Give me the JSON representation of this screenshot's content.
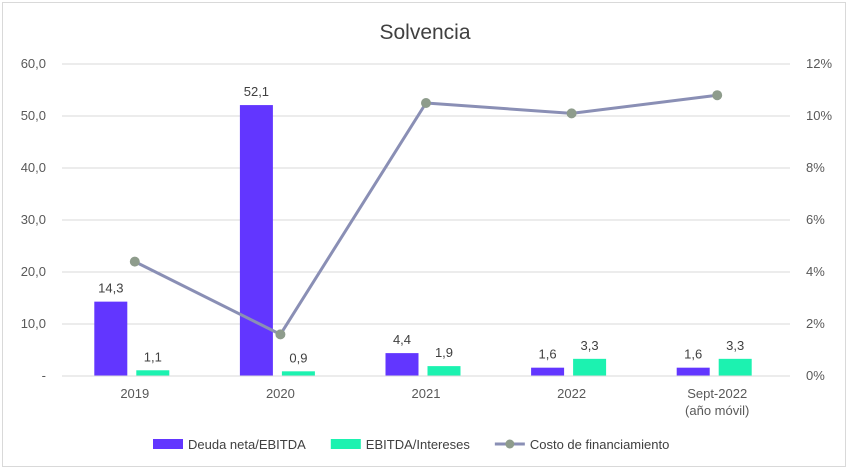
{
  "chart_data": {
    "type": "bar",
    "title": "Solvencia",
    "categories": [
      [
        "2019"
      ],
      [
        "2020"
      ],
      [
        "2021"
      ],
      [
        "2022"
      ],
      [
        "Sept-2022",
        "(año móvil)"
      ]
    ],
    "series": [
      {
        "name": "Deuda neta/EBITDA",
        "type": "bar",
        "axis": "left",
        "color": "#6236FF",
        "values": [
          14.3,
          52.1,
          4.4,
          1.6,
          1.6
        ],
        "labels": [
          "14,3",
          "52,1",
          "4,4",
          "1,6",
          "1,6"
        ]
      },
      {
        "name": "EBITDA/Intereses",
        "type": "bar",
        "axis": "left",
        "color": "#1CF2B0",
        "values": [
          1.1,
          0.9,
          1.9,
          3.3,
          3.3
        ],
        "labels": [
          "1,1",
          "0,9",
          "1,9",
          "3,3",
          "3,3"
        ]
      },
      {
        "name": "Costo de financiamiento",
        "type": "line",
        "axis": "right",
        "color": "#8A8FB5",
        "marker_color": "#8E9C8C",
        "values": [
          4.4,
          1.6,
          10.5,
          10.1,
          10.8
        ]
      }
    ],
    "y_left": {
      "ylim": [
        0,
        60
      ],
      "ticks": [
        0,
        10,
        20,
        30,
        40,
        50,
        60
      ],
      "tick_labels": [
        "-",
        "10,0",
        "20,0",
        "30,0",
        "40,0",
        "50,0",
        "60,0"
      ]
    },
    "y_right": {
      "ylim": [
        0,
        12
      ],
      "ticks": [
        0,
        2,
        4,
        6,
        8,
        10,
        12
      ],
      "tick_labels": [
        "0%",
        "2%",
        "4%",
        "6%",
        "8%",
        "10%",
        "12%"
      ]
    },
    "grid": true,
    "legend_position": "bottom"
  }
}
